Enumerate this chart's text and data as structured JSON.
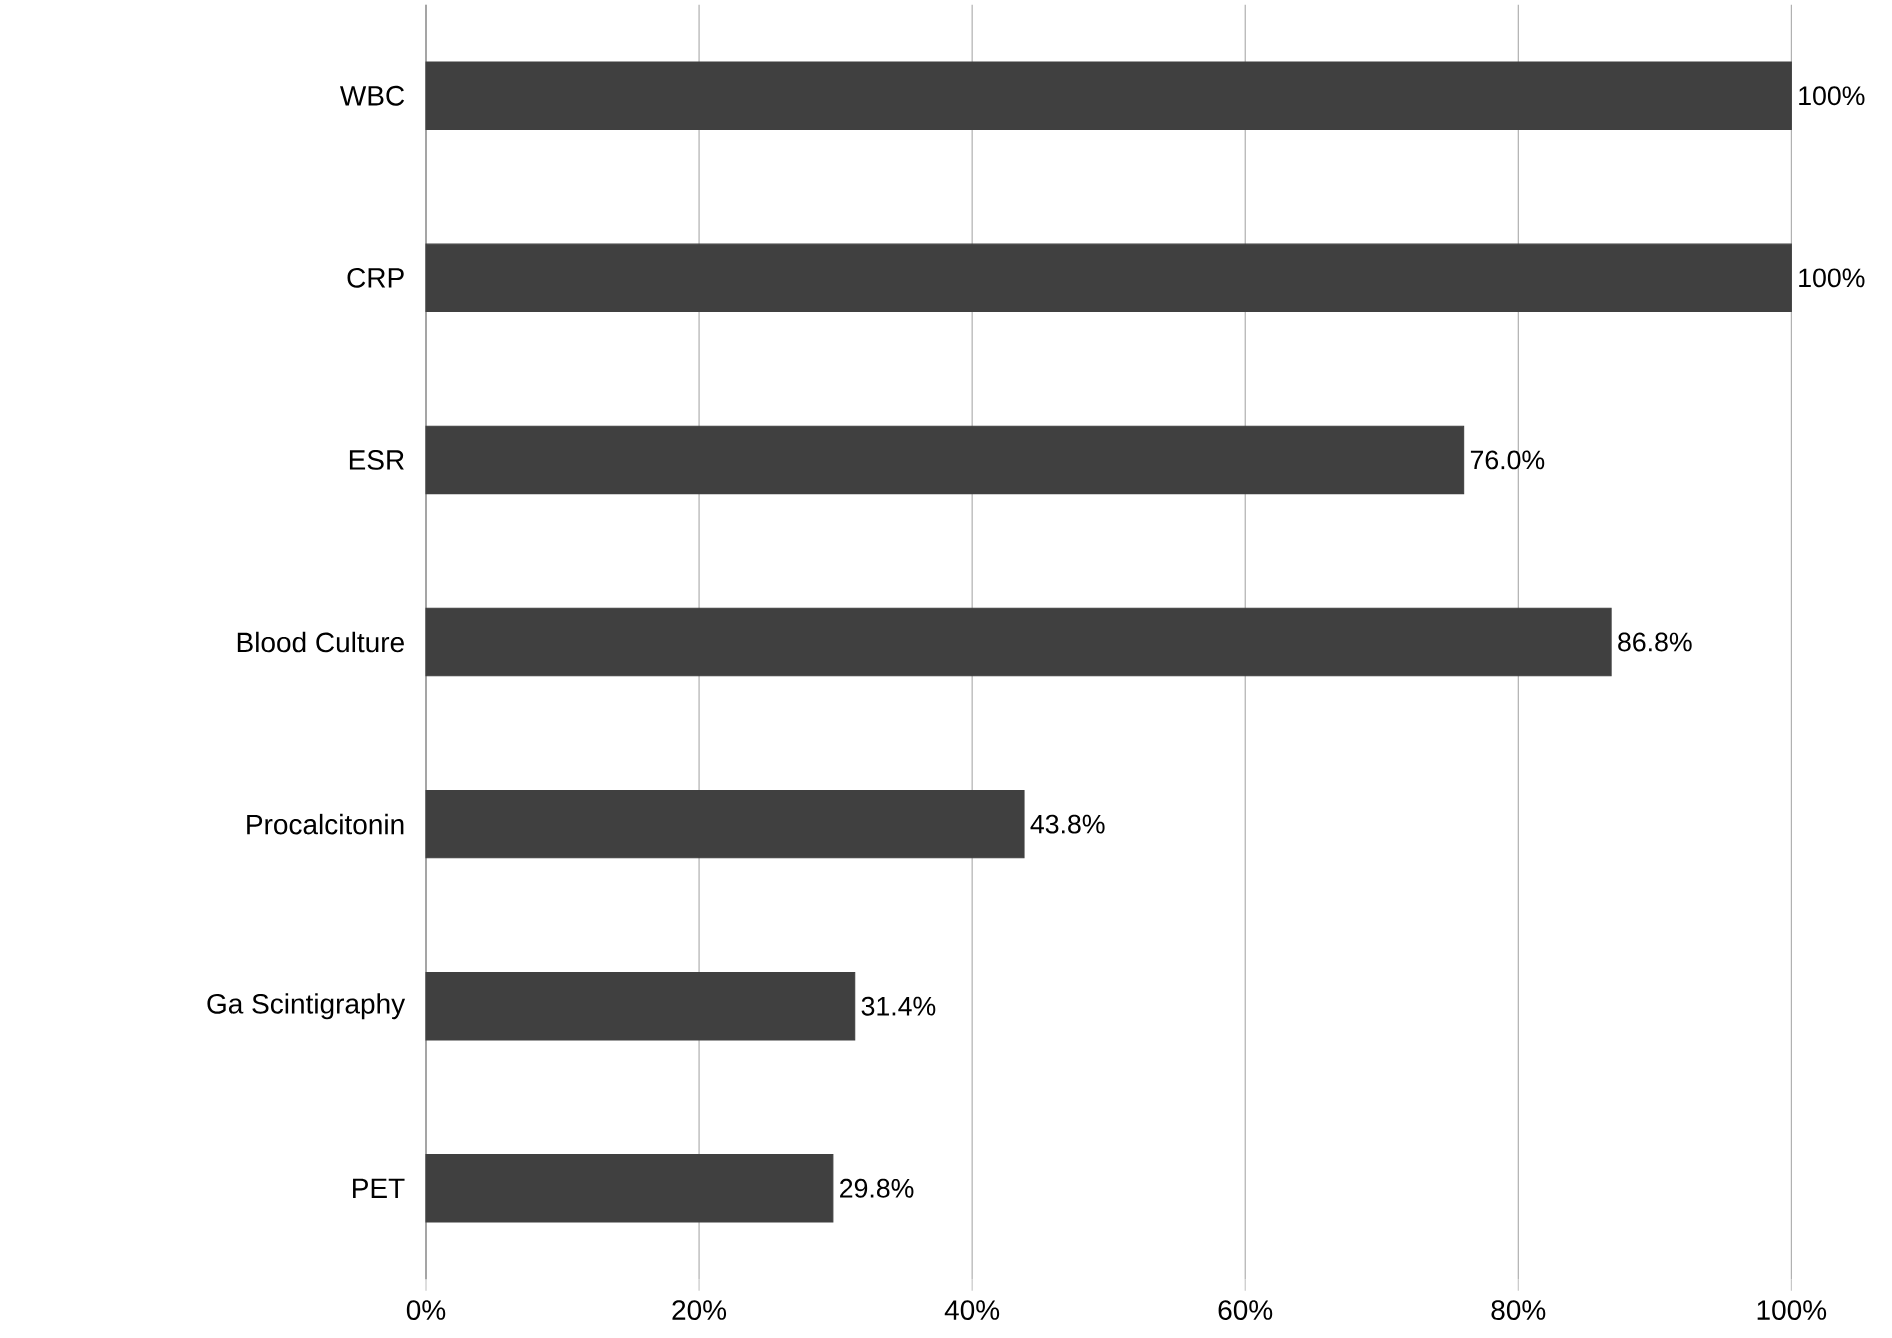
{
  "chart_data": {
    "type": "bar",
    "orientation": "horizontal",
    "categories": [
      "WBC",
      "CRP",
      "ESR",
      "Blood Culture",
      "Procalcitonin",
      "Ga Scintigraphy",
      "PET"
    ],
    "values": [
      100,
      100,
      76.0,
      86.8,
      43.8,
      31.4,
      29.8
    ],
    "value_labels": [
      "100%",
      "100%",
      "76.0%",
      "86.8%",
      "43.8%",
      "31.4%",
      "29.8%"
    ],
    "color": "#404040",
    "xlim": [
      0,
      100
    ],
    "xticks": [
      {
        "value": 0,
        "label": "0%"
      },
      {
        "value": 20,
        "label": "20%"
      },
      {
        "value": 40,
        "label": "40%"
      },
      {
        "value": 60,
        "label": "60%"
      },
      {
        "value": 80,
        "label": "80%"
      },
      {
        "value": 100,
        "label": "100%"
      }
    ],
    "grid": "x"
  }
}
